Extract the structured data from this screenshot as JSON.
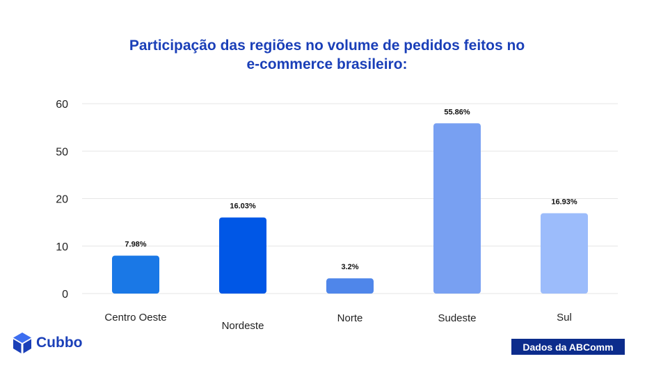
{
  "chart_data": {
    "type": "bar",
    "title_lines": [
      "Participação das regiões no volume de pedidos feitos no",
      "e-commerce brasileiro:"
    ],
    "categories": [
      "Centro Oeste",
      "Nordeste",
      "Norte",
      "Sudeste",
      "Sul"
    ],
    "values": [
      7.98,
      16.03,
      3.2,
      55.86,
      16.93
    ],
    "data_labels": [
      "7.98%",
      "16.03%",
      "3.2%",
      "55.86%",
      "16.93%"
    ],
    "y_ticks": [
      "0",
      "10",
      "20",
      "50",
      "60"
    ],
    "colors": [
      "#1a78e6",
      "#0057e6",
      "#4f86ea",
      "#78a0f2",
      "#9cbcfb"
    ],
    "grid": true,
    "legend": "none"
  },
  "brand": {
    "name": "Cubbo",
    "color": "#1a3fb8"
  },
  "source_label": "Dados da ABComm"
}
